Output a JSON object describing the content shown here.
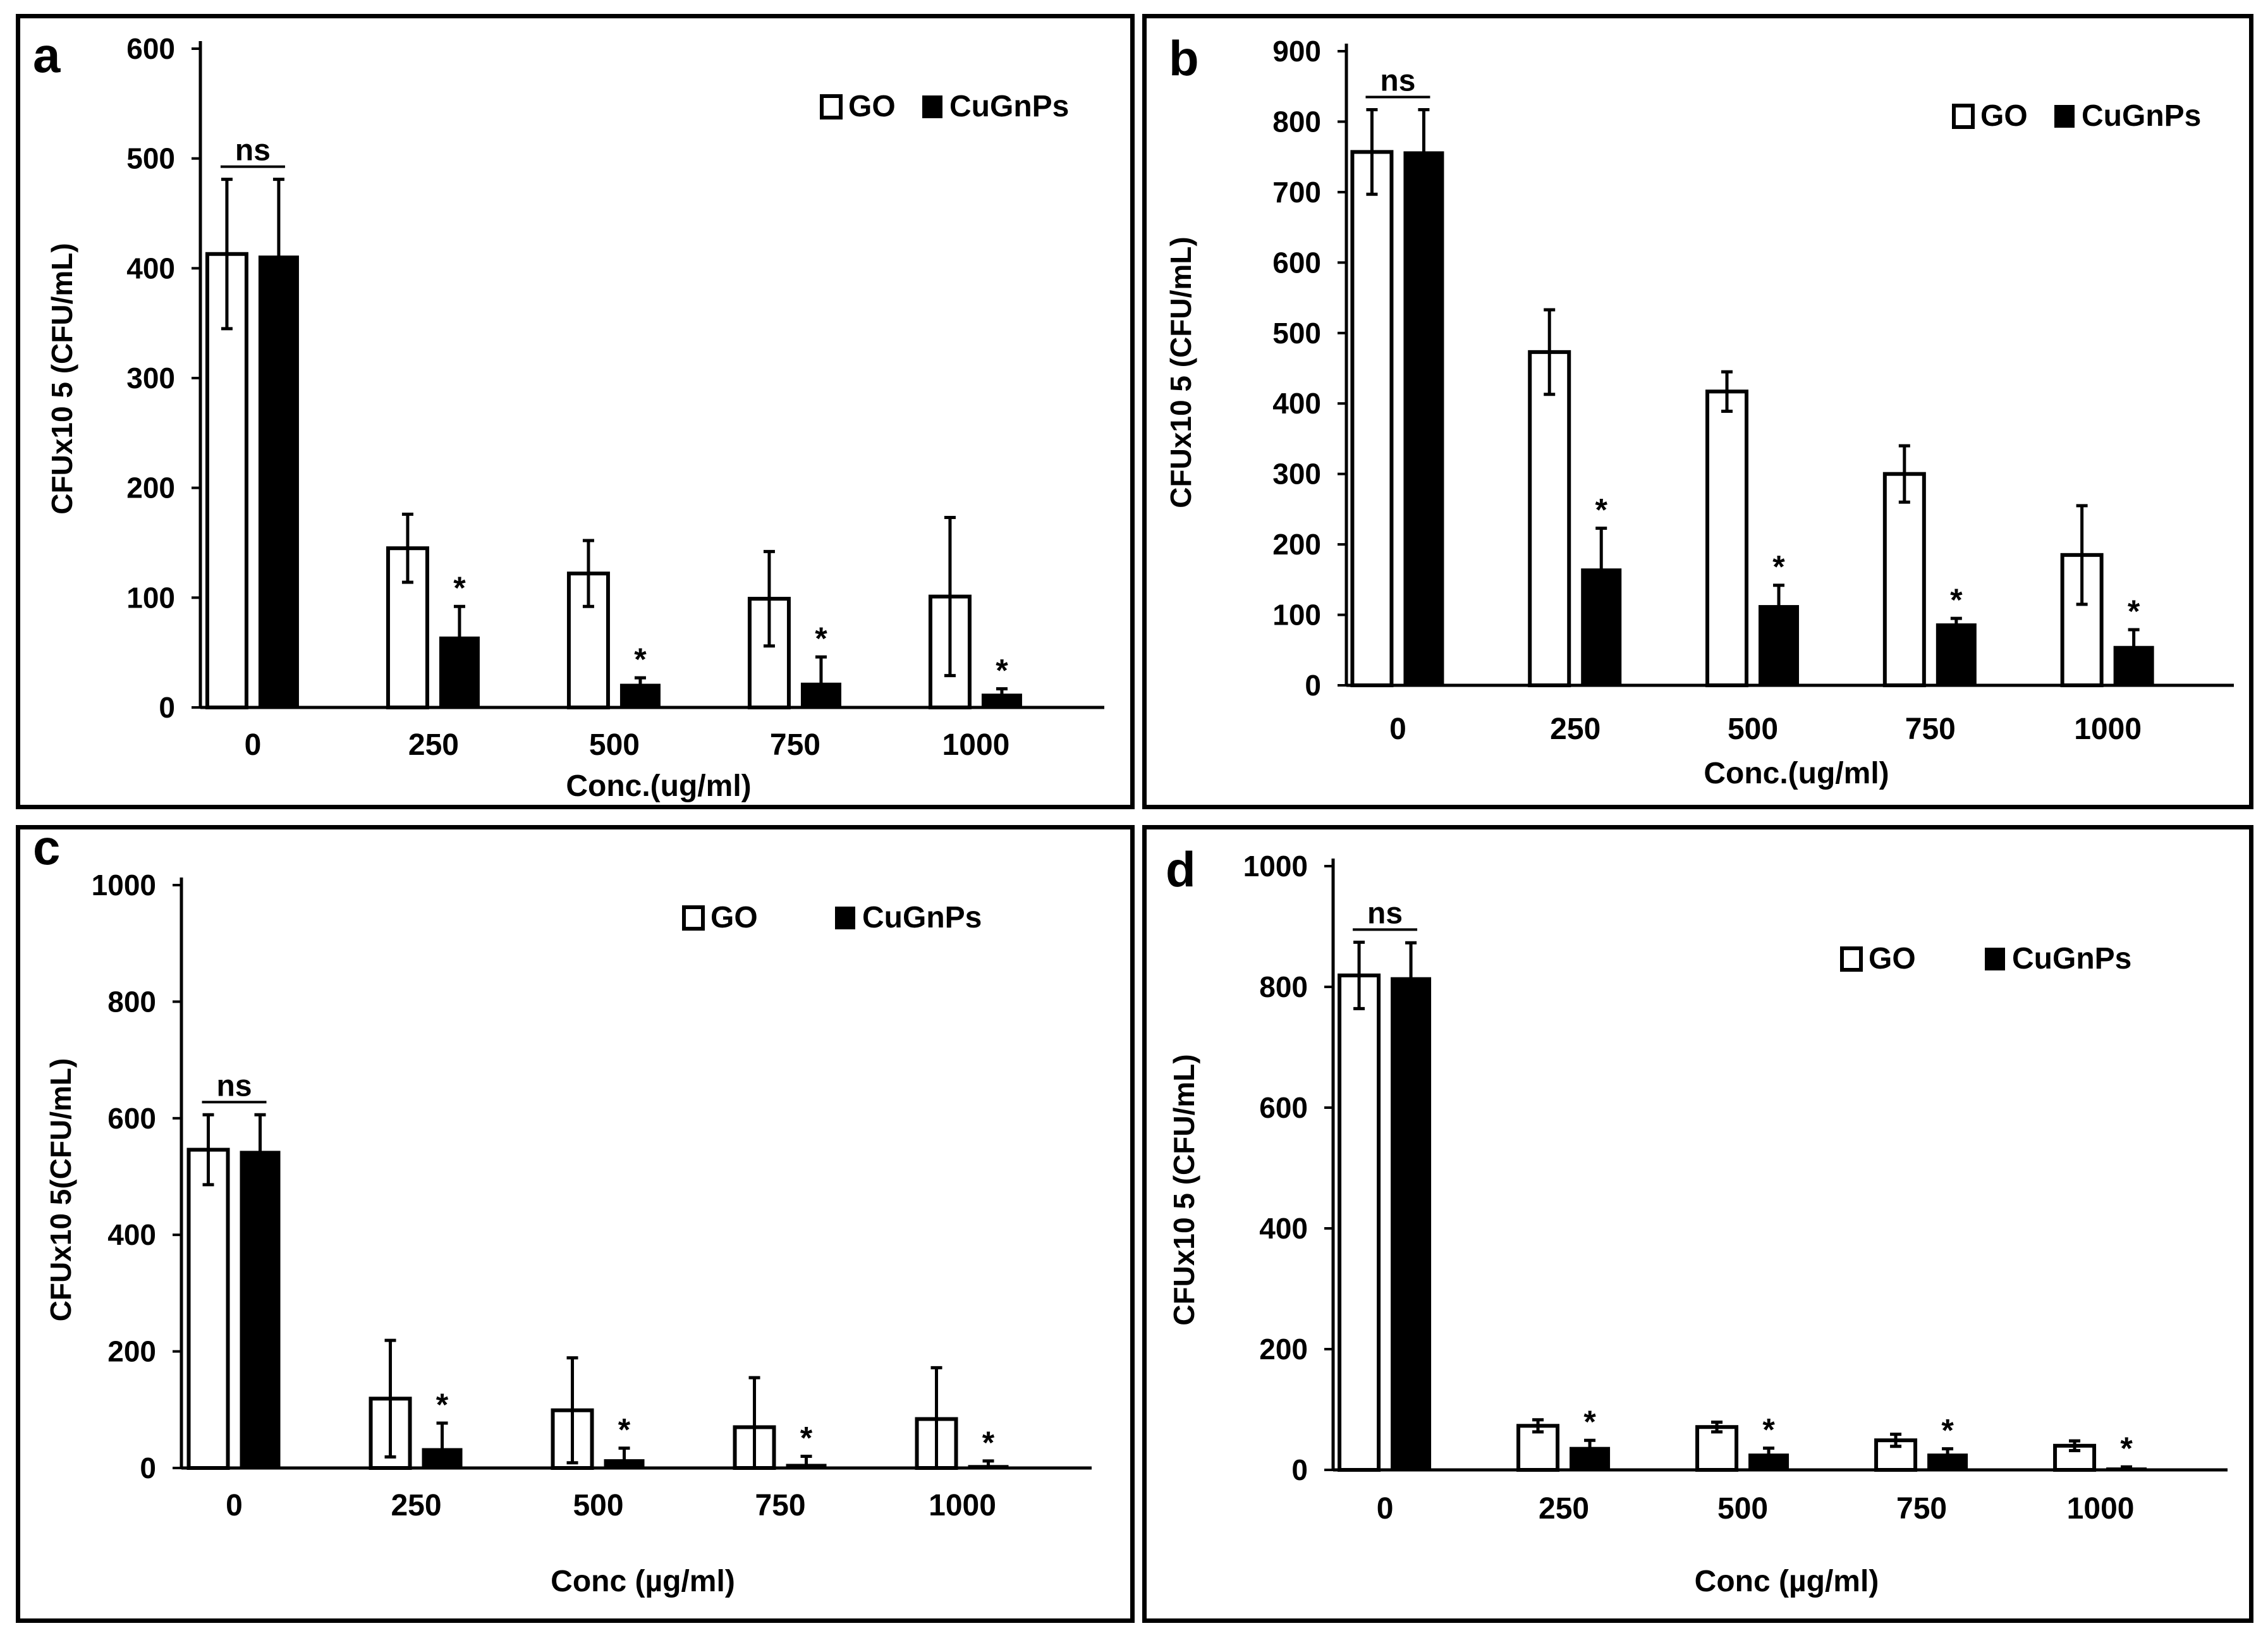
{
  "chart_data": [
    {
      "id": "a",
      "type": "bar",
      "panel_label": "a",
      "categories": [
        "0",
        "250",
        "500",
        "750",
        "1000"
      ],
      "series": [
        {
          "name": "GO",
          "values": [
            413,
            145,
            122,
            99,
            101
          ],
          "errors": [
            68,
            31,
            30,
            43,
            72
          ]
        },
        {
          "name": "CuGnPs",
          "values": [
            411,
            64,
            21,
            22,
            12
          ],
          "errors": [
            70,
            28,
            6,
            24,
            5
          ]
        }
      ],
      "significance": [
        "ns",
        "*",
        "*",
        "*",
        "*"
      ],
      "xlabel": "Conc.(ug/ml)",
      "ylabel": "CFUx10 5 (CFU/mL)",
      "ylim": [
        0,
        600
      ],
      "yticks": [
        "0",
        "100",
        "200",
        "300",
        "400",
        "500",
        "600"
      ],
      "legend_position": "top-right"
    },
    {
      "id": "b",
      "type": "bar",
      "panel_label": "b",
      "categories": [
        "0",
        "250",
        "500",
        "750",
        "1000"
      ],
      "series": [
        {
          "name": "GO",
          "values": [
            757,
            473,
            417,
            300,
            185
          ],
          "errors": [
            60,
            60,
            28,
            40,
            70
          ]
        },
        {
          "name": "CuGnPs",
          "values": [
            757,
            165,
            113,
            87,
            55
          ],
          "errors": [
            60,
            58,
            29,
            8,
            24
          ]
        }
      ],
      "significance": [
        "ns",
        "*",
        "*",
        "*",
        "*"
      ],
      "xlabel": "Conc.(ug/ml)",
      "ylabel": "CFUx10 5 (CFU/mL)",
      "ylim": [
        0,
        900
      ],
      "yticks": [
        "0",
        "100",
        "200",
        "300",
        "400",
        "500",
        "600",
        "700",
        "800",
        "900"
      ],
      "legend_position": "top-right"
    },
    {
      "id": "c",
      "type": "bar",
      "panel_label": "c",
      "categories": [
        "0",
        "250",
        "500",
        "750",
        "1000"
      ],
      "series": [
        {
          "name": "GO",
          "values": [
            546,
            119,
            99,
            70,
            84
          ],
          "errors": [
            60,
            100,
            90,
            85,
            88
          ]
        },
        {
          "name": "CuGnPs",
          "values": [
            543,
            33,
            14,
            6,
            4
          ],
          "errors": [
            63,
            44,
            20,
            14,
            8
          ]
        }
      ],
      "significance": [
        "ns",
        "*",
        "*",
        "*",
        "*"
      ],
      "xlabel": "Conc (µg/ml)",
      "ylabel": "CFUx10 5(CFU/mL)",
      "ylim": [
        0,
        1000
      ],
      "yticks": [
        "0",
        "200",
        "400",
        "600",
        "800",
        "1000"
      ],
      "legend_position": "top-right"
    },
    {
      "id": "d",
      "type": "bar",
      "panel_label": "d",
      "categories": [
        "0",
        "250",
        "500",
        "750",
        "1000"
      ],
      "series": [
        {
          "name": "GO",
          "values": [
            819,
            73,
            71,
            49,
            40
          ],
          "errors": [
            55,
            10,
            8,
            10,
            8
          ]
        },
        {
          "name": "CuGnPs",
          "values": [
            815,
            37,
            26,
            26,
            3
          ],
          "errors": [
            58,
            12,
            10,
            9,
            2
          ]
        }
      ],
      "significance": [
        "ns",
        "*",
        "*",
        "*",
        "*"
      ],
      "xlabel": "Conc (µg/ml)",
      "ylabel": "CFUx10 5 (CFU/mL)",
      "ylim": [
        0,
        1000
      ],
      "yticks": [
        "0",
        "200",
        "400",
        "600",
        "800",
        "1000"
      ],
      "legend_position": "top-right"
    }
  ]
}
